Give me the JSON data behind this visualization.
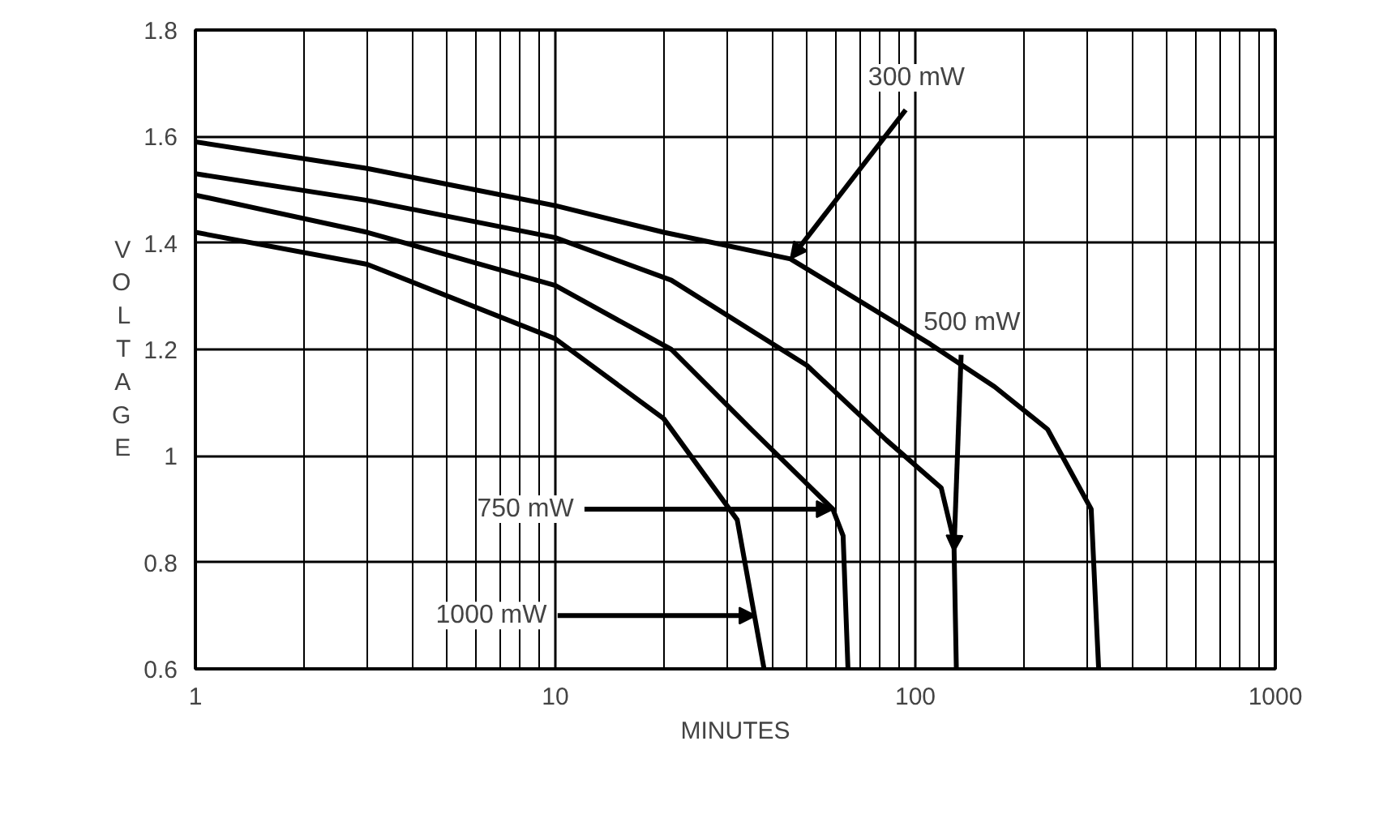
{
  "chart_data": {
    "type": "line",
    "xlabel": "MINUTES",
    "ylabel": "VOLTAGE",
    "log": "x",
    "xlim": [
      1,
      1000
    ],
    "xticks": [
      1,
      10,
      100,
      1000
    ],
    "ylim": [
      0.6,
      1.8
    ],
    "yticks": [
      0.6,
      0.8,
      1,
      1.2,
      1.4,
      1.6,
      1.8
    ],
    "grid": true,
    "line_style": "solid",
    "series": [
      {
        "color": "#000000",
        "x": [
          1,
          3,
          10,
          20,
          45,
          110,
          166,
          233,
          308,
          323
        ],
        "values": [
          1.59,
          1.54,
          1.47,
          1.42,
          1.37,
          1.21,
          1.13,
          1.05,
          0.9,
          0.6
        ]
      },
      {
        "color": "#000000",
        "x": [
          1,
          3,
          10,
          21,
          50,
          83,
          118,
          128,
          130
        ],
        "values": [
          1.53,
          1.48,
          1.41,
          1.33,
          1.17,
          1.03,
          0.94,
          0.84,
          0.6
        ]
      },
      {
        "color": "#000000",
        "x": [
          1,
          3,
          10,
          21,
          35,
          59,
          63,
          65
        ],
        "values": [
          1.49,
          1.42,
          1.32,
          1.2,
          1.05,
          0.9,
          0.85,
          0.6
        ]
      },
      {
        "color": "#000000",
        "x": [
          1,
          3,
          10,
          20,
          32,
          38
        ],
        "values": [
          1.42,
          1.36,
          1.22,
          1.07,
          0.88,
          0.6
        ]
      }
    ],
    "annotations": [
      {
        "text": "300 mW",
        "x": 45,
        "y": 1.37
      },
      {
        "text": "500 mW",
        "x": 128,
        "y": 0.82
      },
      {
        "text": "750 mW",
        "x": 59,
        "y": 0.9
      },
      {
        "text": "1000 mW",
        "x": 36,
        "y": 0.7
      }
    ]
  }
}
